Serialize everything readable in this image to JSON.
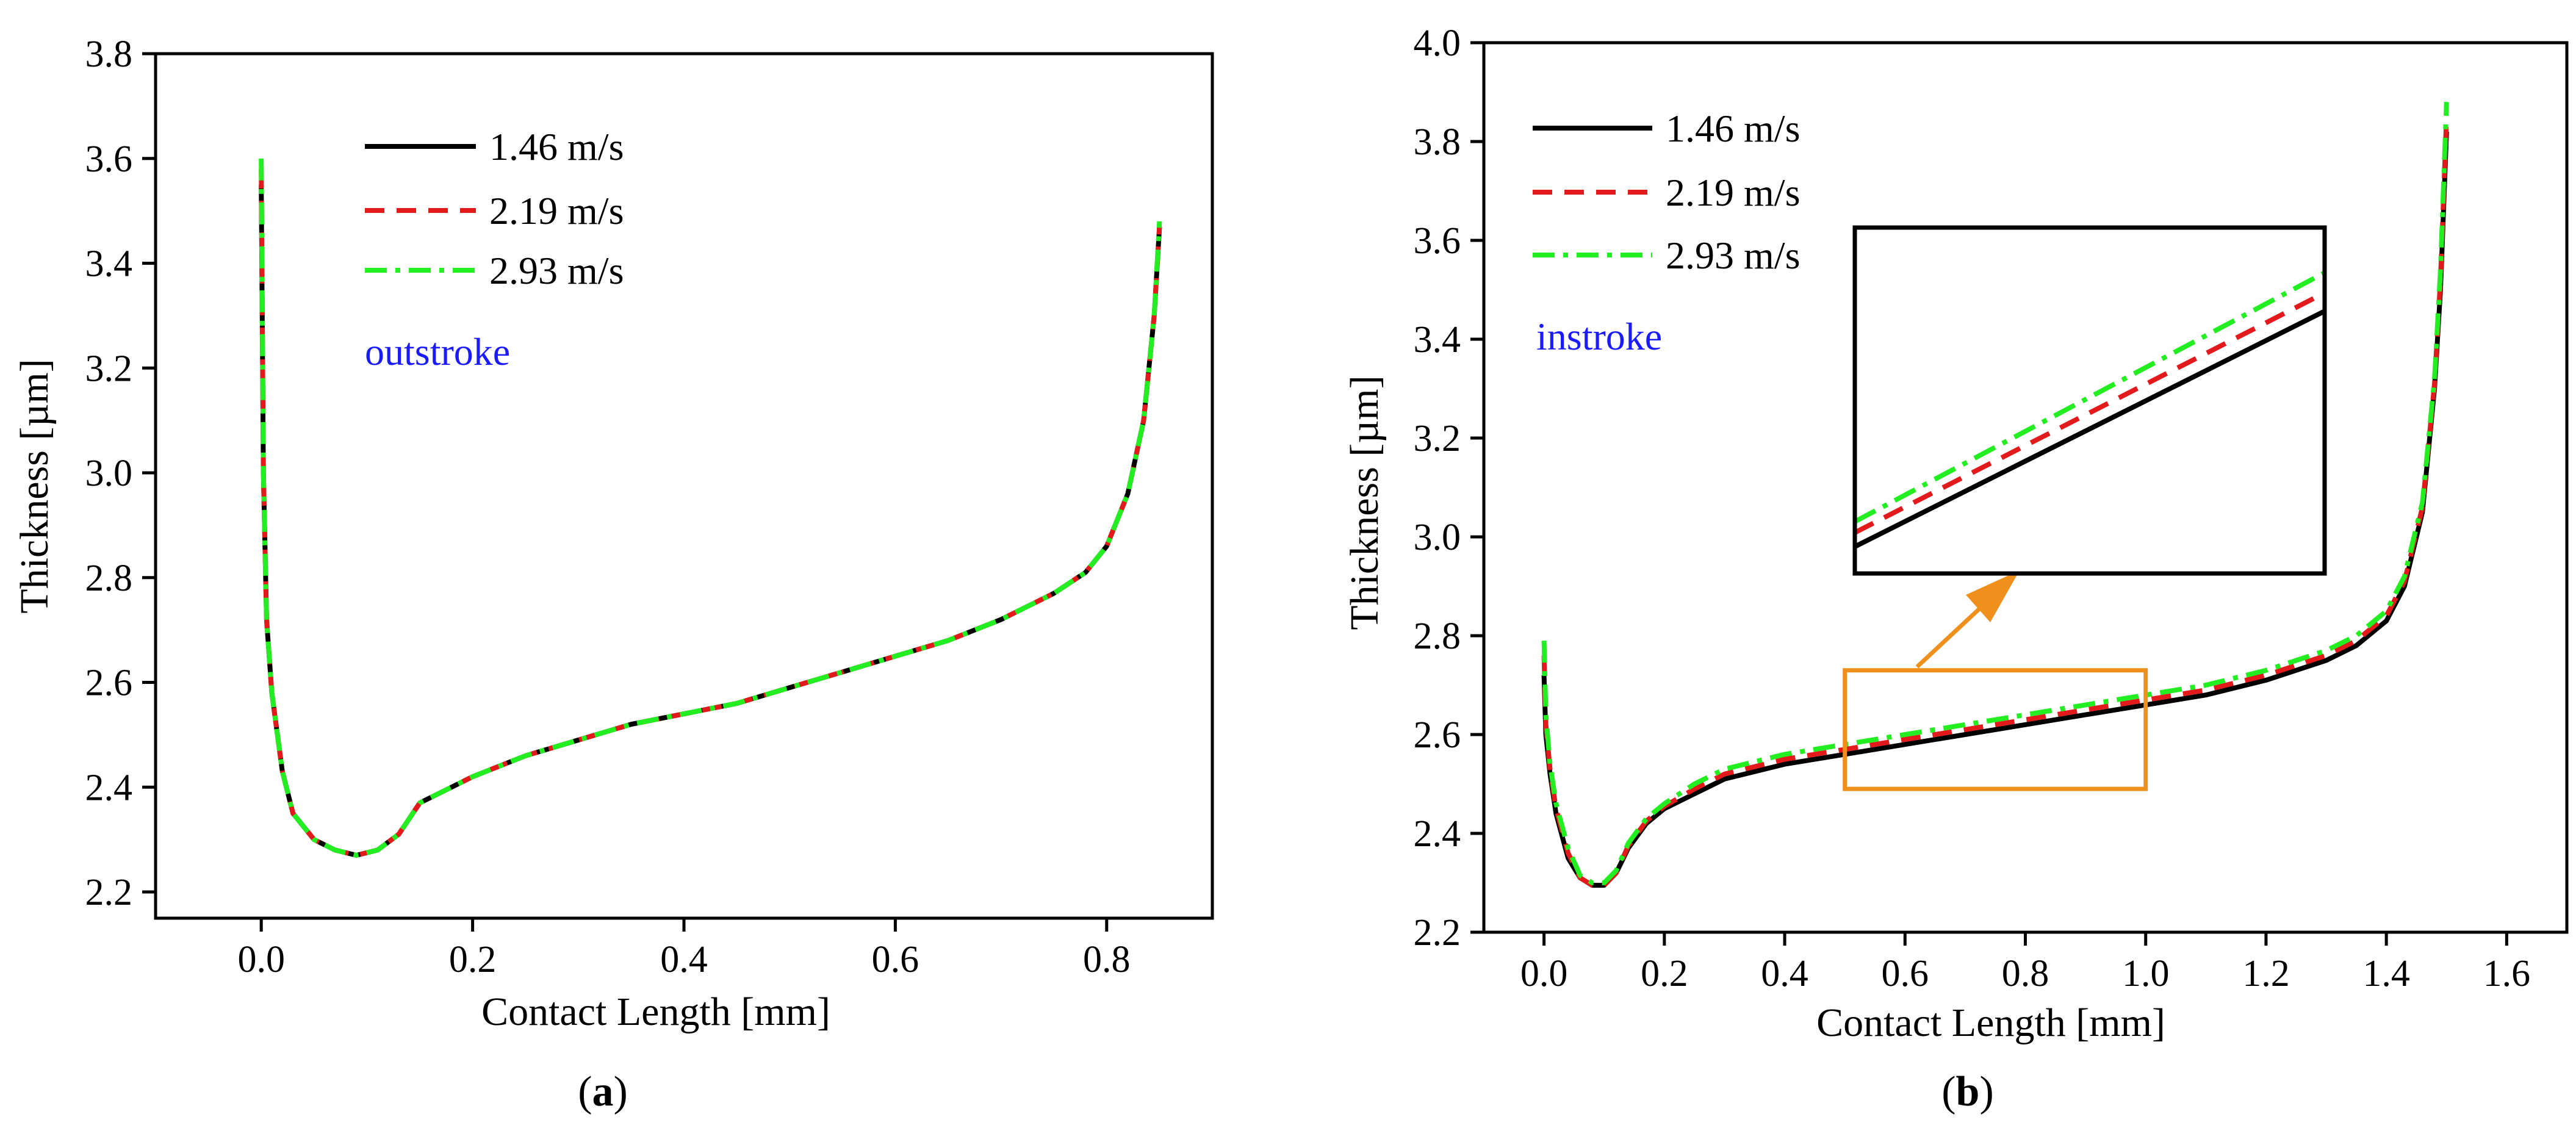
{
  "colors": {
    "s146": "#000000",
    "s219": "#e31a1c",
    "s293": "#22ee22",
    "annotation": "#1a1aff",
    "zoom_box": "#f0901c"
  },
  "chart_data": [
    {
      "type": "line",
      "panel": "a",
      "panel_label": {
        "open": "(",
        "letter": "a",
        "close": ")"
      },
      "title": "",
      "xlabel": "Contact Length [mm]",
      "ylabel": "Thickness [µm]",
      "xlim": [
        -0.1,
        0.9
      ],
      "ylim": [
        2.15,
        3.8
      ],
      "xticks": [
        0.0,
        0.2,
        0.4,
        0.6,
        0.8
      ],
      "xtick_labels": [
        "0.0",
        "0.2",
        "0.4",
        "0.6",
        "0.8"
      ],
      "yticks": [
        2.2,
        2.4,
        2.6,
        2.8,
        3.0,
        3.2,
        3.4,
        3.6,
        3.8
      ],
      "ytick_labels": [
        "2.2",
        "2.4",
        "2.6",
        "2.8",
        "3.0",
        "3.2",
        "3.4",
        "3.6",
        "3.8"
      ],
      "annotation": "outstroke",
      "legend": [
        "1.46 m/s",
        "2.19 m/s",
        "2.93 m/s"
      ],
      "series": [
        {
          "name": "1.46 m/s",
          "style": "solid",
          "color": "#000000",
          "x": [
            0.0,
            0.002,
            0.005,
            0.01,
            0.02,
            0.03,
            0.05,
            0.07,
            0.09,
            0.11,
            0.13,
            0.15,
            0.18,
            0.2,
            0.25,
            0.3,
            0.35,
            0.4,
            0.45,
            0.5,
            0.55,
            0.6,
            0.65,
            0.7,
            0.75,
            0.78,
            0.8,
            0.82,
            0.835,
            0.845,
            0.85
          ],
          "y": [
            3.55,
            3.0,
            2.72,
            2.58,
            2.43,
            2.35,
            2.3,
            2.28,
            2.27,
            2.28,
            2.31,
            2.37,
            2.4,
            2.42,
            2.46,
            2.49,
            2.52,
            2.54,
            2.56,
            2.59,
            2.62,
            2.65,
            2.68,
            2.72,
            2.77,
            2.81,
            2.86,
            2.96,
            3.1,
            3.3,
            3.47
          ]
        },
        {
          "name": "2.19 m/s",
          "style": "dash",
          "color": "#e31a1c",
          "x": [
            0.0,
            0.002,
            0.005,
            0.01,
            0.02,
            0.03,
            0.05,
            0.07,
            0.09,
            0.11,
            0.13,
            0.15,
            0.18,
            0.2,
            0.25,
            0.3,
            0.35,
            0.4,
            0.45,
            0.5,
            0.55,
            0.6,
            0.65,
            0.7,
            0.75,
            0.78,
            0.8,
            0.82,
            0.835,
            0.845,
            0.85
          ],
          "y": [
            3.58,
            3.0,
            2.72,
            2.58,
            2.43,
            2.35,
            2.3,
            2.28,
            2.27,
            2.28,
            2.31,
            2.37,
            2.4,
            2.42,
            2.46,
            2.49,
            2.52,
            2.54,
            2.56,
            2.59,
            2.62,
            2.65,
            2.68,
            2.72,
            2.77,
            2.81,
            2.86,
            2.96,
            3.1,
            3.3,
            3.47
          ]
        },
        {
          "name": "2.93 m/s",
          "style": "dashdot",
          "color": "#22ee22",
          "x": [
            0.0,
            0.002,
            0.005,
            0.01,
            0.02,
            0.03,
            0.05,
            0.07,
            0.09,
            0.11,
            0.13,
            0.15,
            0.18,
            0.2,
            0.25,
            0.3,
            0.35,
            0.4,
            0.45,
            0.5,
            0.55,
            0.6,
            0.65,
            0.7,
            0.75,
            0.78,
            0.8,
            0.82,
            0.835,
            0.845,
            0.85
          ],
          "y": [
            3.6,
            3.0,
            2.72,
            2.58,
            2.43,
            2.35,
            2.3,
            2.28,
            2.27,
            2.28,
            2.31,
            2.37,
            2.4,
            2.42,
            2.46,
            2.49,
            2.52,
            2.54,
            2.56,
            2.59,
            2.62,
            2.65,
            2.68,
            2.72,
            2.77,
            2.81,
            2.86,
            2.96,
            3.1,
            3.3,
            3.48
          ]
        }
      ]
    },
    {
      "type": "line",
      "panel": "b",
      "panel_label": {
        "open": "(",
        "letter": "b",
        "close": ")"
      },
      "title": "",
      "xlabel": "Contact Length [mm]",
      "ylabel": "Thickness [µm]",
      "xlim": [
        -0.1,
        1.7
      ],
      "ylim": [
        2.2,
        4.0
      ],
      "xticks": [
        0.0,
        0.2,
        0.4,
        0.6,
        0.8,
        1.0,
        1.2,
        1.4,
        1.6
      ],
      "xtick_labels": [
        "0.0",
        "0.2",
        "0.4",
        "0.6",
        "0.8",
        "1.0",
        "1.2",
        "1.4",
        "1.6"
      ],
      "yticks": [
        2.2,
        2.4,
        2.6,
        2.8,
        3.0,
        3.2,
        3.4,
        3.6,
        3.8,
        4.0
      ],
      "ytick_labels": [
        "2.2",
        "2.4",
        "2.6",
        "2.8",
        "3.0",
        "3.2",
        "3.4",
        "3.6",
        "3.8",
        "4.0"
      ],
      "annotation": "instroke",
      "legend": [
        "1.46 m/s",
        "2.19 m/s",
        "2.93 m/s"
      ],
      "zoom_region": {
        "x": [
          0.5,
          1.0
        ],
        "y": [
          2.49,
          2.73
        ]
      },
      "series": [
        {
          "name": "1.46 m/s",
          "style": "solid",
          "color": "#000000",
          "x": [
            0.0,
            0.003,
            0.01,
            0.02,
            0.04,
            0.06,
            0.08,
            0.1,
            0.12,
            0.14,
            0.17,
            0.2,
            0.25,
            0.3,
            0.4,
            0.5,
            0.6,
            0.7,
            0.8,
            0.9,
            1.0,
            1.1,
            1.2,
            1.3,
            1.35,
            1.4,
            1.43,
            1.46,
            1.48,
            1.49,
            1.5
          ],
          "y": [
            2.72,
            2.6,
            2.52,
            2.44,
            2.35,
            2.31,
            2.295,
            2.295,
            2.32,
            2.37,
            2.42,
            2.45,
            2.48,
            2.51,
            2.54,
            2.56,
            2.58,
            2.6,
            2.62,
            2.64,
            2.66,
            2.68,
            2.71,
            2.75,
            2.78,
            2.83,
            2.9,
            3.05,
            3.3,
            3.5,
            3.82
          ]
        },
        {
          "name": "2.19 m/s",
          "style": "dash",
          "color": "#e31a1c",
          "x": [
            0.0,
            0.003,
            0.01,
            0.02,
            0.04,
            0.06,
            0.08,
            0.1,
            0.12,
            0.14,
            0.17,
            0.2,
            0.25,
            0.3,
            0.4,
            0.5,
            0.6,
            0.7,
            0.8,
            0.9,
            1.0,
            1.1,
            1.2,
            1.3,
            1.35,
            1.4,
            1.43,
            1.46,
            1.48,
            1.49,
            1.5
          ],
          "y": [
            2.76,
            2.62,
            2.53,
            2.45,
            2.36,
            2.31,
            2.295,
            2.295,
            2.32,
            2.375,
            2.425,
            2.455,
            2.49,
            2.52,
            2.55,
            2.57,
            2.59,
            2.61,
            2.63,
            2.65,
            2.67,
            2.69,
            2.72,
            2.76,
            2.79,
            2.84,
            2.91,
            3.06,
            3.31,
            3.52,
            3.85
          ]
        },
        {
          "name": "2.93 m/s",
          "style": "dashdot",
          "color": "#22ee22",
          "x": [
            0.0,
            0.003,
            0.01,
            0.02,
            0.04,
            0.06,
            0.08,
            0.1,
            0.12,
            0.14,
            0.17,
            0.2,
            0.25,
            0.3,
            0.4,
            0.5,
            0.6,
            0.7,
            0.8,
            0.9,
            1.0,
            1.1,
            1.2,
            1.3,
            1.35,
            1.4,
            1.43,
            1.46,
            1.48,
            1.49,
            1.5
          ],
          "y": [
            2.79,
            2.64,
            2.54,
            2.46,
            2.37,
            2.315,
            2.3,
            2.3,
            2.325,
            2.38,
            2.43,
            2.46,
            2.5,
            2.53,
            2.56,
            2.58,
            2.6,
            2.62,
            2.64,
            2.66,
            2.68,
            2.7,
            2.73,
            2.77,
            2.8,
            2.85,
            2.92,
            3.07,
            3.32,
            3.54,
            3.88
          ]
        }
      ]
    }
  ]
}
